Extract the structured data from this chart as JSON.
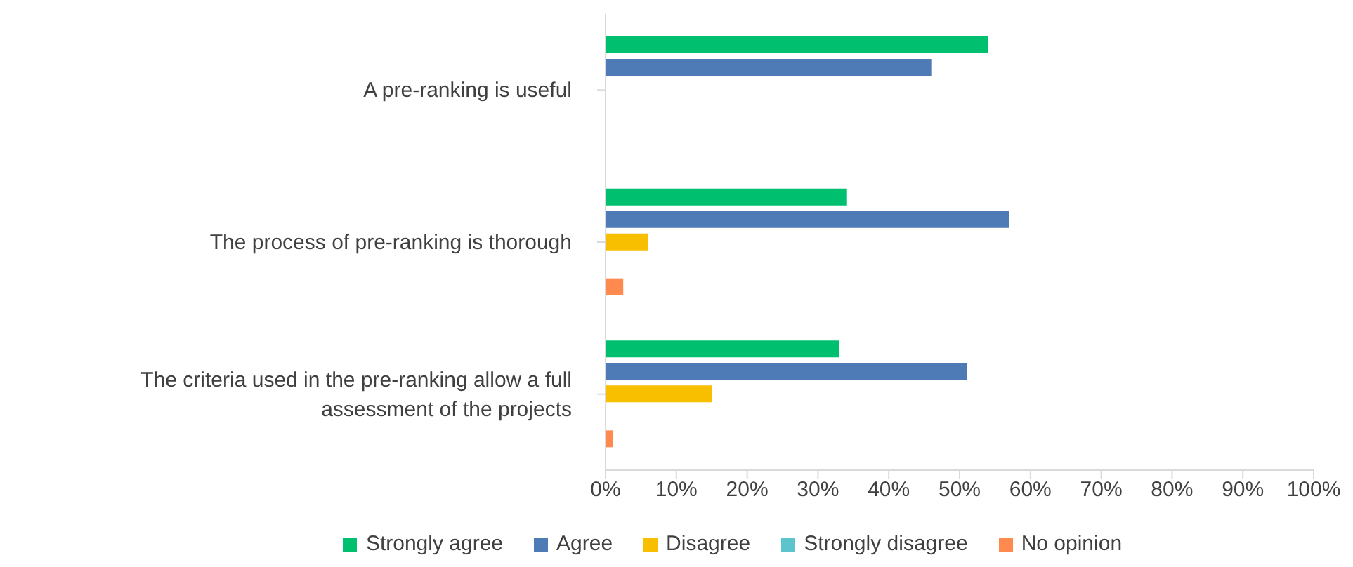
{
  "chart_data": {
    "type": "bar",
    "orientation": "horizontal",
    "categories": [
      "A pre-ranking is useful",
      "The process of pre-ranking is thorough",
      "The criteria used in the pre-ranking allow a full assessment of the projects"
    ],
    "series": [
      {
        "name": "Strongly agree",
        "color": "#00bf6f",
        "values": [
          54,
          34,
          33
        ]
      },
      {
        "name": "Agree",
        "color": "#4e7ab5",
        "values": [
          46,
          57,
          51
        ]
      },
      {
        "name": "Disagree",
        "color": "#f8be00",
        "values": [
          0,
          6,
          15
        ]
      },
      {
        "name": "Strongly disagree",
        "color": "#5bc4cc",
        "values": [
          0,
          0,
          0
        ]
      },
      {
        "name": "No opinion",
        "color": "#ff8a50",
        "values": [
          0,
          2.5,
          1
        ]
      }
    ],
    "xlim": [
      0,
      100
    ],
    "xticks": [
      {
        "value": 0,
        "label": "0%"
      },
      {
        "value": 10,
        "label": "10%"
      },
      {
        "value": 20,
        "label": "20%"
      },
      {
        "value": 30,
        "label": "30%"
      },
      {
        "value": 40,
        "label": "40%"
      },
      {
        "value": 50,
        "label": "50%"
      },
      {
        "value": 60,
        "label": "60%"
      },
      {
        "value": 70,
        "label": "70%"
      },
      {
        "value": 80,
        "label": "80%"
      },
      {
        "value": 90,
        "label": "90%"
      },
      {
        "value": 100,
        "label": "100%"
      }
    ],
    "grid": false,
    "legend": "bottom"
  }
}
